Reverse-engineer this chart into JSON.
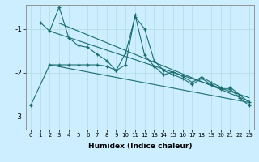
{
  "xlabel": "Humidex (Indice chaleur)",
  "background_color": "#cceeff",
  "line_color": "#1a6e6e",
  "xlim": [
    -0.5,
    23.5
  ],
  "ylim": [
    -3.3,
    -0.45
  ],
  "yticks": [
    -3,
    -2,
    -1
  ],
  "xticks": [
    0,
    1,
    2,
    3,
    4,
    5,
    6,
    7,
    8,
    9,
    10,
    11,
    12,
    13,
    14,
    15,
    16,
    17,
    18,
    19,
    20,
    21,
    22,
    23
  ],
  "series": [
    {
      "x": [
        1,
        2,
        3,
        4,
        5,
        6,
        7,
        8,
        9,
        10,
        11,
        12,
        13,
        14,
        15,
        16,
        17,
        18,
        19,
        20,
        21,
        22,
        23
      ],
      "y": [
        -0.85,
        -1.05,
        -0.5,
        -1.2,
        -1.38,
        -1.42,
        -1.58,
        -1.72,
        -1.95,
        -1.55,
        -0.72,
        -1.0,
        -1.72,
        -1.95,
        -2.05,
        -2.13,
        -2.27,
        -2.13,
        -2.27,
        -2.37,
        -2.37,
        -2.57,
        -2.75
      ],
      "marker": true
    },
    {
      "x": [
        0,
        2,
        3,
        4,
        5,
        6,
        7,
        8,
        9,
        10,
        11,
        12,
        13,
        14,
        15,
        16,
        17,
        18,
        19,
        20,
        21,
        22,
        23
      ],
      "y": [
        -2.75,
        -1.82,
        -1.82,
        -1.82,
        -1.82,
        -1.82,
        -1.82,
        -1.85,
        -1.95,
        -1.82,
        -0.68,
        -1.6,
        -1.85,
        -2.05,
        -1.98,
        -2.08,
        -2.22,
        -2.1,
        -2.22,
        -2.33,
        -2.33,
        -2.5,
        -2.68
      ],
      "marker": true
    },
    {
      "x": [
        2,
        23
      ],
      "y": [
        -1.05,
        -2.57
      ],
      "marker": false
    },
    {
      "x": [
        3,
        23
      ],
      "y": [
        -0.87,
        -2.65
      ],
      "marker": false
    },
    {
      "x": [
        2,
        23
      ],
      "y": [
        -1.82,
        -2.68
      ],
      "marker": false
    }
  ]
}
